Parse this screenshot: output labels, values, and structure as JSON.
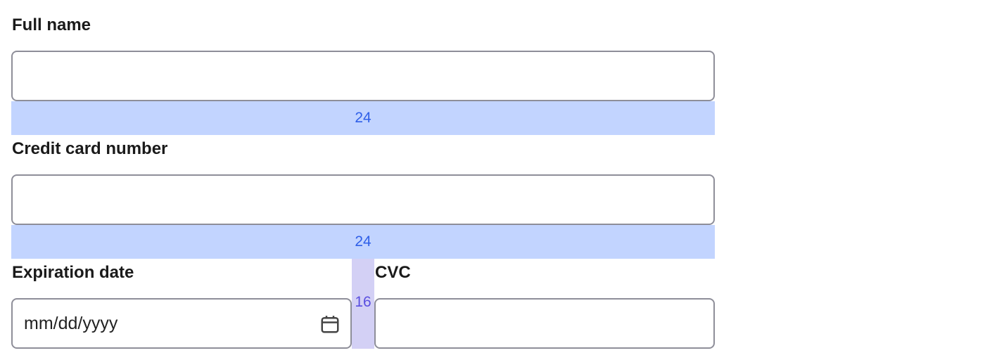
{
  "fields": {
    "full_name": {
      "label": "Full name",
      "value": ""
    },
    "card_number": {
      "label": "Credit card number",
      "value": ""
    },
    "expiration": {
      "label": "Expiration date",
      "placeholder": "mm/dd/yyyy",
      "icon": "calendar-icon"
    },
    "cvc": {
      "label": "CVC",
      "value": ""
    }
  },
  "spacing": {
    "row_gap_1": "24",
    "row_gap_2": "24",
    "column_gap": "16"
  },
  "colors": {
    "row_gap": "#c2d4ff",
    "column_gap": "#d3d0f5"
  }
}
